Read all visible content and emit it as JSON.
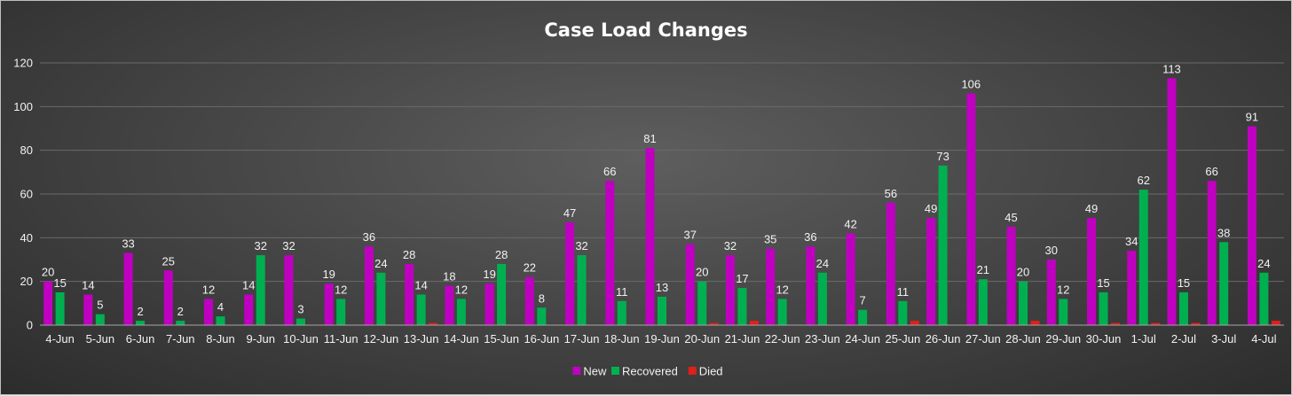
{
  "chart_data": {
    "type": "bar",
    "title": "Case Load Changes",
    "xlabel": "",
    "ylabel": "",
    "ylim": [
      0,
      120
    ],
    "yticks": [
      0,
      20,
      40,
      60,
      80,
      100,
      120
    ],
    "grid": true,
    "legend_position": "bottom",
    "categories": [
      "4-Jun",
      "5-Jun",
      "6-Jun",
      "7-Jun",
      "8-Jun",
      "9-Jun",
      "10-Jun",
      "11-Jun",
      "12-Jun",
      "13-Jun",
      "14-Jun",
      "15-Jun",
      "16-Jun",
      "17-Jun",
      "18-Jun",
      "19-Jun",
      "20-Jun",
      "21-Jun",
      "22-Jun",
      "23-Jun",
      "24-Jun",
      "25-Jun",
      "26-Jun",
      "27-Jun",
      "28-Jun",
      "29-Jun",
      "30-Jun",
      "1-Jul",
      "2-Jul",
      "3-Jul",
      "4-Jul"
    ],
    "series": [
      {
        "name": "New",
        "color": "#c000c0",
        "show_labels": true,
        "values": [
          20,
          14,
          33,
          25,
          12,
          14,
          32,
          19,
          36,
          28,
          18,
          19,
          22,
          47,
          66,
          81,
          37,
          32,
          35,
          36,
          42,
          56,
          49,
          106,
          45,
          30,
          49,
          34,
          113,
          66,
          91
        ]
      },
      {
        "name": "Recovered",
        "color": "#00b050",
        "show_labels": true,
        "values": [
          15,
          5,
          2,
          2,
          4,
          32,
          3,
          12,
          24,
          14,
          12,
          28,
          8,
          32,
          11,
          13,
          20,
          17,
          12,
          24,
          7,
          11,
          73,
          21,
          20,
          12,
          15,
          62,
          15,
          38,
          24
        ]
      },
      {
        "name": "Died",
        "color": "#e0201a",
        "show_labels": false,
        "values": [
          0,
          0,
          0,
          0,
          0,
          0,
          0,
          0,
          0,
          1,
          0,
          0,
          0,
          0,
          0,
          0,
          1,
          2,
          0,
          0,
          0,
          2,
          0,
          0,
          2,
          0,
          1,
          1,
          1,
          0,
          2
        ]
      }
    ]
  }
}
